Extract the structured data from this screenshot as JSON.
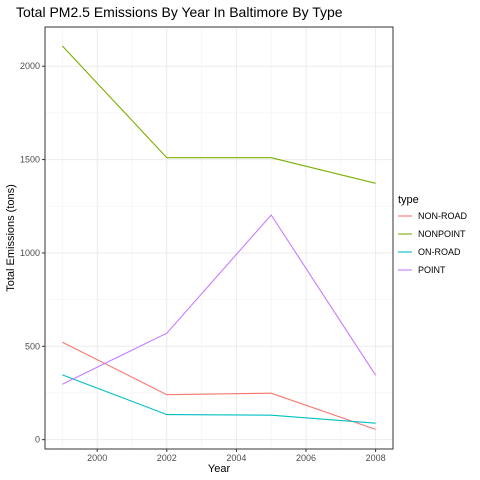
{
  "chart_data": {
    "type": "line",
    "title": "Total PM2.5 Emissions By Year In Baltimore By Type",
    "xlabel": "Year",
    "ylabel": "Total Emissions (tons)",
    "x": [
      1999,
      2002,
      2005,
      2008
    ],
    "xticks": [
      "2000",
      "2002",
      "2004",
      "2006",
      "2008"
    ],
    "yticks": [
      "0",
      "500",
      "1000",
      "1500",
      "2000"
    ],
    "xlim": [
      1998.5,
      2008.5
    ],
    "ylim": [
      -50,
      2210
    ],
    "grid": true,
    "legend": {
      "title": "type",
      "position": "right"
    },
    "series": [
      {
        "name": "NON-ROAD",
        "color": "#F8766D",
        "values": [
          522,
          241,
          249,
          55
        ]
      },
      {
        "name": "NONPOINT",
        "color": "#7CAE00",
        "values": [
          2108,
          1510,
          1510,
          1373
        ]
      },
      {
        "name": "ON-ROAD",
        "color": "#00BFC4",
        "values": [
          347,
          134,
          131,
          88
        ]
      },
      {
        "name": "POINT",
        "color": "#C77CFF",
        "values": [
          297,
          570,
          1203,
          345
        ]
      }
    ]
  }
}
